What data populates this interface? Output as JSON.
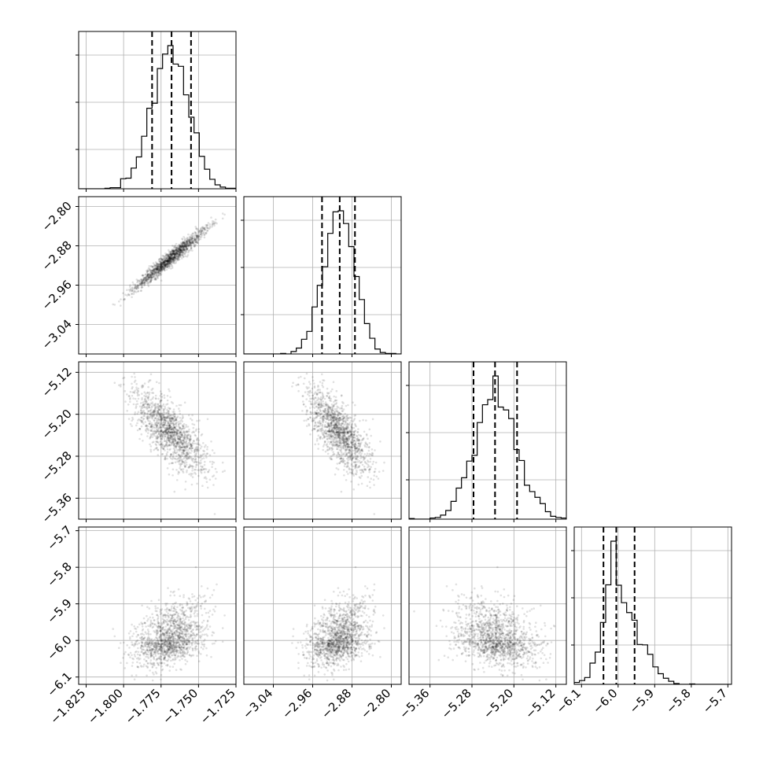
{
  "chart_data": {
    "type": "corner",
    "grid": true,
    "parameters": [
      {
        "range": [
          -1.83,
          -1.725
        ],
        "ticks": [
          -1.825,
          -1.8,
          -1.775,
          -1.75,
          -1.725
        ],
        "tick_labels": [
          "−1.825",
          "−1.800",
          "−1.775",
          "−1.750",
          "−1.725"
        ],
        "mean": -1.7685,
        "std": 0.0125,
        "quantiles": [
          -1.781,
          -1.768,
          -1.755
        ]
      },
      {
        "range": [
          -3.1,
          -2.78
        ],
        "ticks": [
          -3.04,
          -2.96,
          -2.88,
          -2.8
        ],
        "tick_labels": [
          "−3.04",
          "−2.96",
          "−2.88",
          "−2.80"
        ],
        "mean": -2.905,
        "std": 0.032,
        "quantiles": [
          -2.941,
          -2.905,
          -2.874
        ]
      },
      {
        "range": [
          -5.4,
          -5.1
        ],
        "ticks": [
          -5.36,
          -5.28,
          -5.2,
          -5.12
        ],
        "tick_labels": [
          "−5.36",
          "−5.28",
          "−5.20",
          "−5.12"
        ],
        "mean": -5.235,
        "std": 0.04,
        "quantiles": [
          -5.277,
          -5.236,
          -5.194
        ]
      },
      {
        "range": [
          -6.12,
          -5.69
        ],
        "ticks": [
          -6.1,
          -6.0,
          -5.9,
          -5.8,
          -5.7
        ],
        "tick_labels": [
          "−6.1",
          "−6.0",
          "−5.9",
          "−5.8",
          "−5.7"
        ],
        "mean": -6.0,
        "std": 0.035,
        "quantiles": [
          -6.04,
          -6.005,
          -5.955
        ]
      }
    ],
    "correlations": [
      [
        1,
        0.97,
        -0.75,
        0.35
      ],
      [
        0.97,
        1,
        -0.75,
        0.35
      ],
      [
        -0.75,
        -0.75,
        1,
        -0.15
      ],
      [
        0.35,
        0.35,
        -0.15,
        1
      ]
    ],
    "colors": {
      "points": "#000000",
      "lines": "#000000",
      "grid": "#b0b0b0"
    }
  }
}
